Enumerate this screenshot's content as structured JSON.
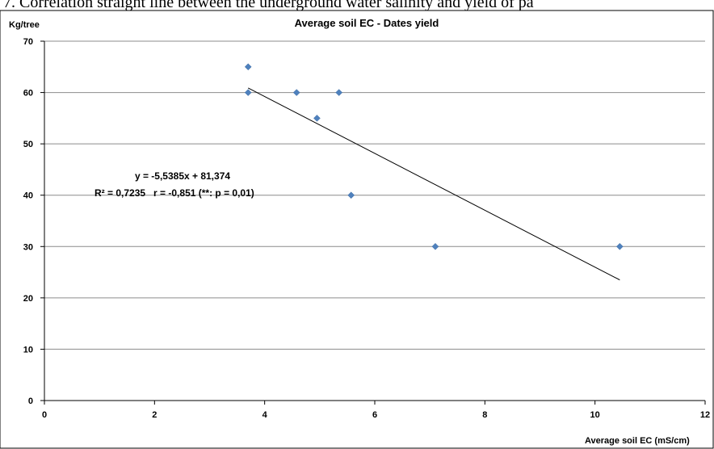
{
  "caption_fragment": "7. Correlation straight line between the underground water salinity and yield of pa",
  "chart_data": {
    "type": "scatter",
    "title": "Average soil EC - Dates yield",
    "xlabel": "Average soil EC (mS/cm)",
    "ylabel": "Kg/tree",
    "xlim": [
      0,
      12
    ],
    "ylim": [
      0,
      70
    ],
    "xticks": [
      0,
      2,
      4,
      6,
      8,
      10,
      12
    ],
    "yticks": [
      0,
      10,
      20,
      30,
      40,
      50,
      60,
      70
    ],
    "grid": true,
    "legend": "none",
    "points": [
      {
        "x": 3.7,
        "y": 65
      },
      {
        "x": 3.7,
        "y": 60
      },
      {
        "x": 4.58,
        "y": 60
      },
      {
        "x": 4.95,
        "y": 55
      },
      {
        "x": 5.35,
        "y": 60
      },
      {
        "x": 5.57,
        "y": 40
      },
      {
        "x": 7.1,
        "y": 30
      },
      {
        "x": 10.45,
        "y": 30
      }
    ],
    "trendline": {
      "slope": -5.5385,
      "intercept": 81.374,
      "x_start": 3.7,
      "x_end": 10.45
    },
    "annotations": {
      "equation": "y = -5,5385x + 81,374",
      "stats": "R² = 0,7235   r = -0,851 (**: p = 0,01)"
    },
    "colors": {
      "marker": "#4F81BD",
      "trendline": "#000000",
      "grid": "#8c8c8c"
    }
  }
}
